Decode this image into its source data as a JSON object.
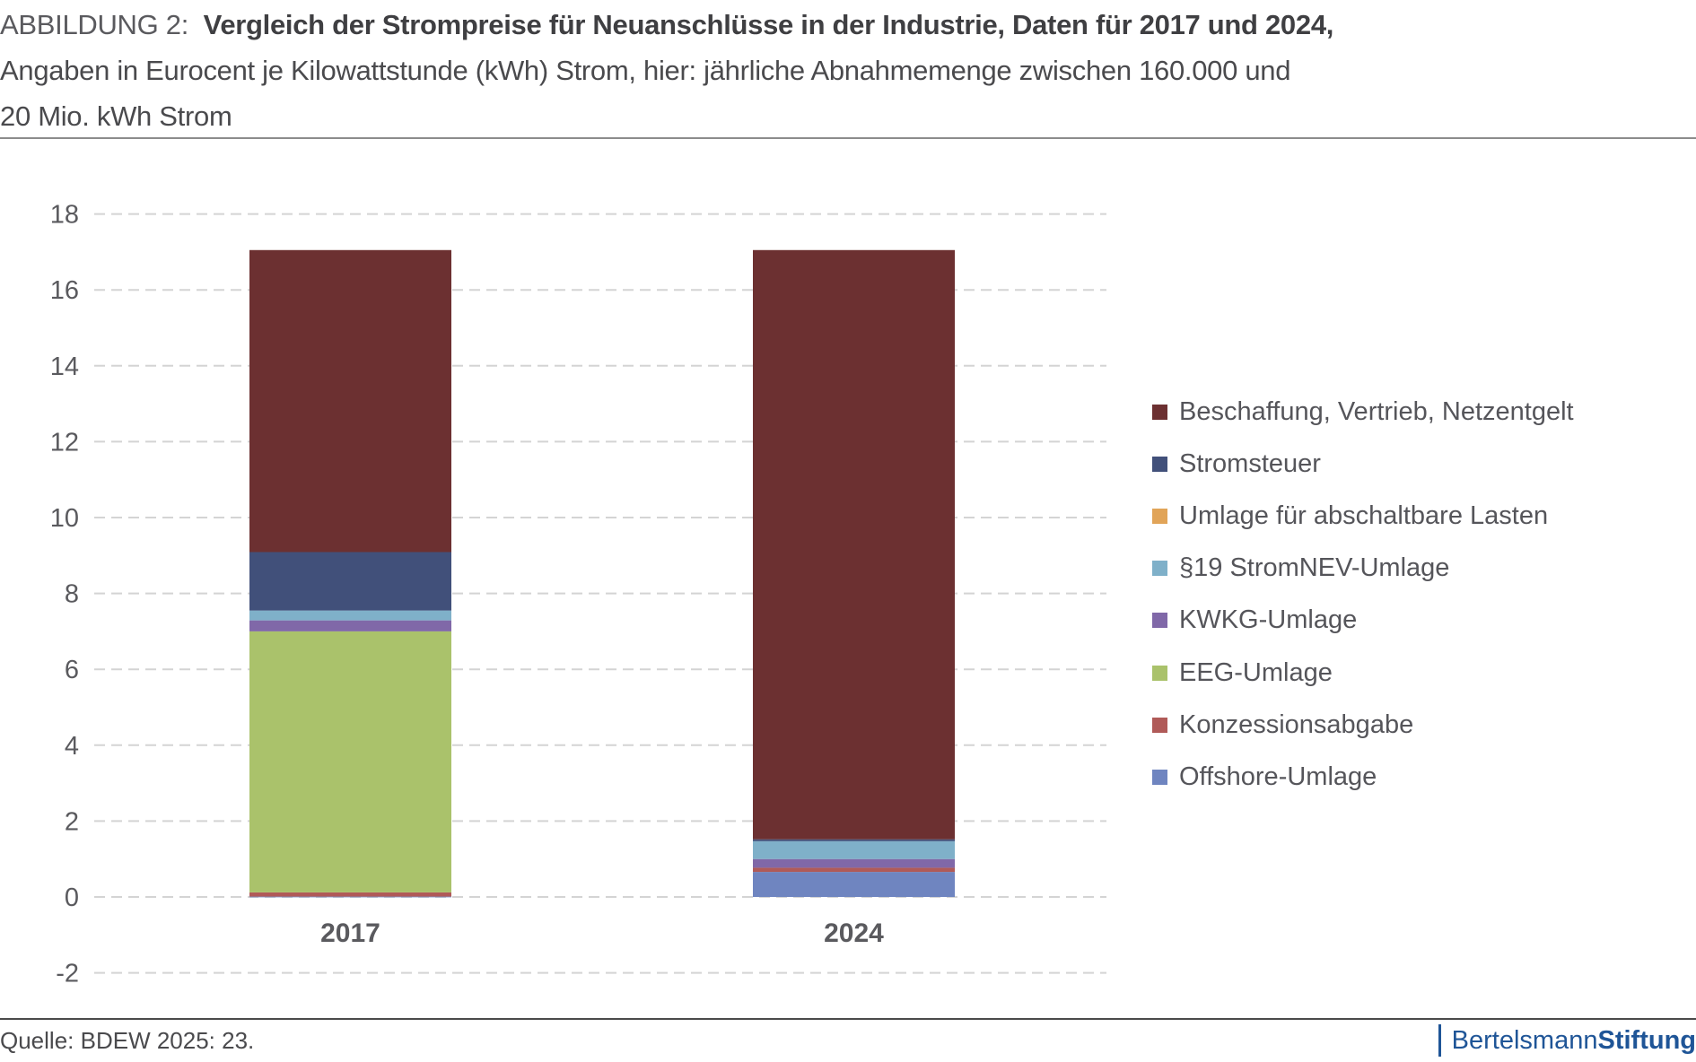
{
  "header": {
    "figure_label": "ABBILDUNG 2:",
    "title_bold": "Vergleich der Strompreise für Neuanschlüsse in der Industrie, Daten für 2017 und 2024,",
    "subtitle_line1": "Angaben in Eurocent je Kilowattstunde (kWh) Strom, hier: jährliche Abnahmemenge zwischen 160.000 und",
    "subtitle_line2": "20 Mio. kWh Strom"
  },
  "footer": {
    "source": "Quelle: BDEW 2025: 23.",
    "logo_regular": "Bertelsmann",
    "logo_bold": "Stiftung",
    "logo_color": "#1f5597"
  },
  "chart_data": {
    "type": "bar",
    "stacked": true,
    "title": "Vergleich der Strompreise für Neuanschlüsse in der Industrie, Daten für 2017 und 2024",
    "xlabel": "",
    "ylabel": "Eurocent je kWh",
    "categories": [
      "2017",
      "2024"
    ],
    "ylim": [
      -2,
      18
    ],
    "yticks": [
      "18",
      "16",
      "14",
      "12",
      "10",
      "8",
      "6",
      "4",
      "2",
      "0",
      "-2"
    ],
    "ytick_values": [
      18,
      16,
      14,
      12,
      10,
      8,
      6,
      4,
      2,
      0,
      -2
    ],
    "grid": true,
    "legend_position": "right",
    "series": [
      {
        "name": "Offshore-Umlage",
        "color": "#6f85c0",
        "values": [
          0.01,
          0.66
        ]
      },
      {
        "name": "Konzessionsabgabe",
        "color": "#b05a58",
        "values": [
          0.11,
          0.11
        ]
      },
      {
        "name": "EEG-Umlage",
        "color": "#aac26b",
        "values": [
          6.88,
          0.0
        ]
      },
      {
        "name": "KWKG-Umlage",
        "color": "#8068a8",
        "values": [
          0.29,
          0.23
        ]
      },
      {
        "name": "§19 StromNEV-Umlage",
        "color": "#7fb0c9",
        "values": [
          0.26,
          0.47
        ]
      },
      {
        "name": "Umlage für abschaltbare Lasten",
        "color": "#e1a458",
        "values": [
          0.0,
          0.0
        ]
      },
      {
        "name": "Stromsteuer",
        "color": "#41507a",
        "values": [
          1.54,
          0.05
        ]
      },
      {
        "name": "Beschaffung, Vertrieb, Netzentgelt",
        "color": "#6c3031",
        "values": [
          7.96,
          15.53
        ]
      }
    ],
    "legend": [
      "Beschaffung, Vertrieb, Netzentgelt",
      "Stromsteuer",
      "Umlage für abschaltbare Lasten",
      "§19 StromNEV-Umlage",
      "KWKG-Umlage",
      "EEG-Umlage",
      "Konzessionsabgabe",
      "Offshore-Umlage"
    ]
  }
}
